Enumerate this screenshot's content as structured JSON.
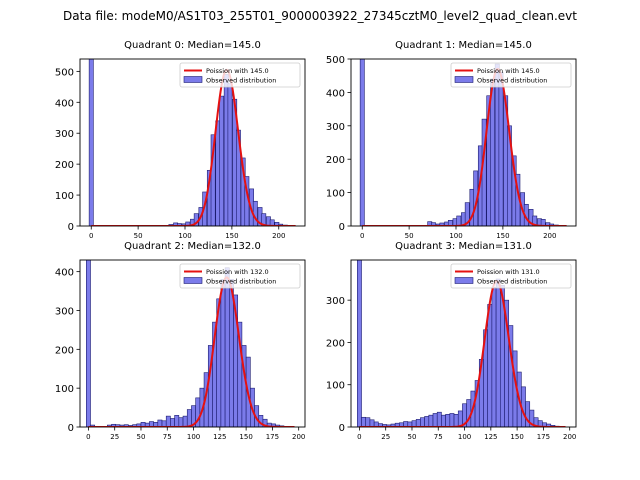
{
  "figure_title": "Data file: modeM0/AS1T03_255T01_9000003922_27345cztM0_level2_quad_clean.evt",
  "colors": {
    "bar_fill": "#7b7bea",
    "bar_edge": "#1c1c70",
    "curve": "#e51111",
    "axis": "#000000"
  },
  "chart_data": [
    {
      "type": "bar",
      "title": "Quadrant 0: Median=145.0",
      "legend": [
        "Poission with 145.0",
        "Observed distribution"
      ],
      "legend_position": "top-right",
      "xlim": [
        -12,
        228
      ],
      "ylim": [
        0,
        540
      ],
      "xticks": [
        0,
        50,
        100,
        150,
        200
      ],
      "yticks": [
        0,
        100,
        200,
        300,
        400,
        500
      ],
      "bin_width": 4.5,
      "bins": [
        [
          0,
          540
        ],
        [
          85,
          5
        ],
        [
          90,
          10
        ],
        [
          94,
          8
        ],
        [
          99,
          7
        ],
        [
          103,
          13
        ],
        [
          108,
          22
        ],
        [
          112,
          40
        ],
        [
          117,
          60
        ],
        [
          121,
          110
        ],
        [
          126,
          180
        ],
        [
          130,
          295
        ],
        [
          135,
          340
        ],
        [
          139,
          420
        ],
        [
          144,
          490
        ],
        [
          148,
          460
        ],
        [
          153,
          410
        ],
        [
          157,
          310
        ],
        [
          162,
          220
        ],
        [
          166,
          160
        ],
        [
          171,
          120
        ],
        [
          175,
          80
        ],
        [
          180,
          60
        ],
        [
          184,
          40
        ],
        [
          189,
          30
        ],
        [
          193,
          20
        ],
        [
          198,
          12
        ],
        [
          202,
          6
        ],
        [
          207,
          3
        ]
      ],
      "poisson_mean": 145.0,
      "poisson_peak": 505
    },
    {
      "type": "bar",
      "title": "Quadrant 1: Median=145.0",
      "legend": [
        "Poission with 145.0",
        "Observed distribution"
      ],
      "legend_position": "top-right",
      "xlim": [
        -12,
        228
      ],
      "ylim": [
        0,
        500
      ],
      "xticks": [
        0,
        50,
        100,
        150,
        200
      ],
      "yticks": [
        0,
        100,
        200,
        300,
        400,
        500
      ],
      "bin_width": 4.5,
      "bins": [
        [
          0,
          500
        ],
        [
          72,
          13
        ],
        [
          76,
          10
        ],
        [
          81,
          6
        ],
        [
          85,
          9
        ],
        [
          90,
          12
        ],
        [
          94,
          17
        ],
        [
          99,
          22
        ],
        [
          103,
          30
        ],
        [
          108,
          40
        ],
        [
          112,
          70
        ],
        [
          117,
          110
        ],
        [
          121,
          165
        ],
        [
          126,
          240
        ],
        [
          130,
          320
        ],
        [
          135,
          390
        ],
        [
          139,
          440
        ],
        [
          144,
          485
        ],
        [
          148,
          460
        ],
        [
          153,
          390
        ],
        [
          157,
          300
        ],
        [
          162,
          210
        ],
        [
          166,
          155
        ],
        [
          171,
          100
        ],
        [
          175,
          65
        ],
        [
          180,
          50
        ],
        [
          184,
          30
        ],
        [
          189,
          22
        ],
        [
          193,
          20
        ],
        [
          198,
          10
        ],
        [
          202,
          6
        ],
        [
          207,
          3
        ]
      ],
      "poisson_mean": 145.0,
      "poisson_peak": 470
    },
    {
      "type": "bar",
      "title": "Quadrant 2: Median=132.0",
      "legend": [
        "Poission with 132.0",
        "Observed distribution"
      ],
      "legend_position": "top-right",
      "xlim": [
        -8,
        206
      ],
      "ylim": [
        0,
        430
      ],
      "xticks": [
        0,
        25,
        50,
        75,
        100,
        125,
        150,
        175,
        200
      ],
      "yticks": [
        0,
        100,
        200,
        300,
        400
      ],
      "bin_width": 4,
      "bins": [
        [
          0,
          430
        ],
        [
          4,
          5
        ],
        [
          20,
          5
        ],
        [
          24,
          7
        ],
        [
          28,
          6
        ],
        [
          32,
          5
        ],
        [
          36,
          6
        ],
        [
          40,
          4
        ],
        [
          44,
          6
        ],
        [
          48,
          8
        ],
        [
          52,
          12
        ],
        [
          56,
          10
        ],
        [
          60,
          14
        ],
        [
          64,
          12
        ],
        [
          68,
          18
        ],
        [
          72,
          16
        ],
        [
          76,
          28
        ],
        [
          80,
          22
        ],
        [
          84,
          30
        ],
        [
          88,
          24
        ],
        [
          92,
          28
        ],
        [
          96,
          45
        ],
        [
          100,
          55
        ],
        [
          104,
          75
        ],
        [
          108,
          100
        ],
        [
          112,
          140
        ],
        [
          116,
          210
        ],
        [
          120,
          270
        ],
        [
          124,
          330
        ],
        [
          128,
          380
        ],
        [
          132,
          410
        ],
        [
          136,
          380
        ],
        [
          140,
          340
        ],
        [
          144,
          270
        ],
        [
          148,
          210
        ],
        [
          152,
          180
        ],
        [
          156,
          100
        ],
        [
          160,
          55
        ],
        [
          164,
          30
        ],
        [
          168,
          20
        ],
        [
          172,
          10
        ],
        [
          176,
          8
        ],
        [
          180,
          5
        ],
        [
          184,
          3
        ]
      ],
      "poisson_mean": 132.0,
      "poisson_peak": 385
    },
    {
      "type": "bar",
      "title": "Quadrant 3: Median=131.0",
      "legend": [
        "Poission with 131.0",
        "Observed distribution"
      ],
      "legend_position": "top-right",
      "xlim": [
        -8,
        206
      ],
      "ylim": [
        0,
        395
      ],
      "xticks": [
        0,
        25,
        50,
        75,
        100,
        125,
        150,
        175,
        200
      ],
      "yticks": [
        0,
        100,
        200,
        300
      ],
      "bin_width": 4,
      "bins": [
        [
          0,
          395
        ],
        [
          4,
          23
        ],
        [
          8,
          22
        ],
        [
          12,
          17
        ],
        [
          16,
          12
        ],
        [
          20,
          8
        ],
        [
          24,
          6
        ],
        [
          28,
          5
        ],
        [
          32,
          7
        ],
        [
          36,
          9
        ],
        [
          40,
          10
        ],
        [
          44,
          13
        ],
        [
          48,
          12
        ],
        [
          52,
          15
        ],
        [
          56,
          18
        ],
        [
          60,
          22
        ],
        [
          64,
          25
        ],
        [
          68,
          28
        ],
        [
          72,
          32
        ],
        [
          76,
          35
        ],
        [
          80,
          28
        ],
        [
          84,
          30
        ],
        [
          88,
          32
        ],
        [
          92,
          30
        ],
        [
          96,
          38
        ],
        [
          100,
          55
        ],
        [
          104,
          65
        ],
        [
          108,
          85
        ],
        [
          112,
          110
        ],
        [
          116,
          160
        ],
        [
          120,
          230
        ],
        [
          124,
          290
        ],
        [
          128,
          330
        ],
        [
          132,
          350
        ],
        [
          136,
          335
        ],
        [
          140,
          300
        ],
        [
          144,
          240
        ],
        [
          148,
          180
        ],
        [
          152,
          130
        ],
        [
          156,
          95
        ],
        [
          160,
          60
        ],
        [
          164,
          40
        ],
        [
          168,
          22
        ],
        [
          172,
          15
        ],
        [
          176,
          10
        ],
        [
          180,
          7
        ],
        [
          184,
          4
        ],
        [
          188,
          2
        ]
      ],
      "poisson_mean": 131.0,
      "poisson_peak": 345
    }
  ]
}
